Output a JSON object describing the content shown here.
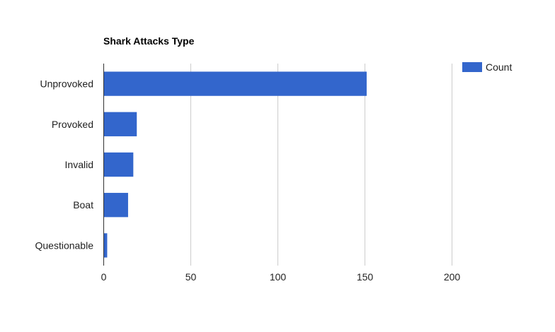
{
  "chart_data": {
    "type": "bar",
    "orientation": "horizontal",
    "title": "Shark Attacks Type",
    "categories": [
      "Unprovoked",
      "Provoked",
      "Invalid",
      "Boat",
      "Questionable"
    ],
    "series": [
      {
        "name": "Count",
        "values": [
          151,
          19,
          17,
          14,
          2
        ],
        "color": "#3366cc"
      }
    ],
    "xlim": [
      0,
      200
    ],
    "x_ticks": [
      0,
      50,
      100,
      150,
      200
    ],
    "xlabel": "",
    "ylabel": "",
    "grid": "vertical",
    "legend": {
      "position": "right",
      "entries": [
        "Count"
      ]
    }
  }
}
